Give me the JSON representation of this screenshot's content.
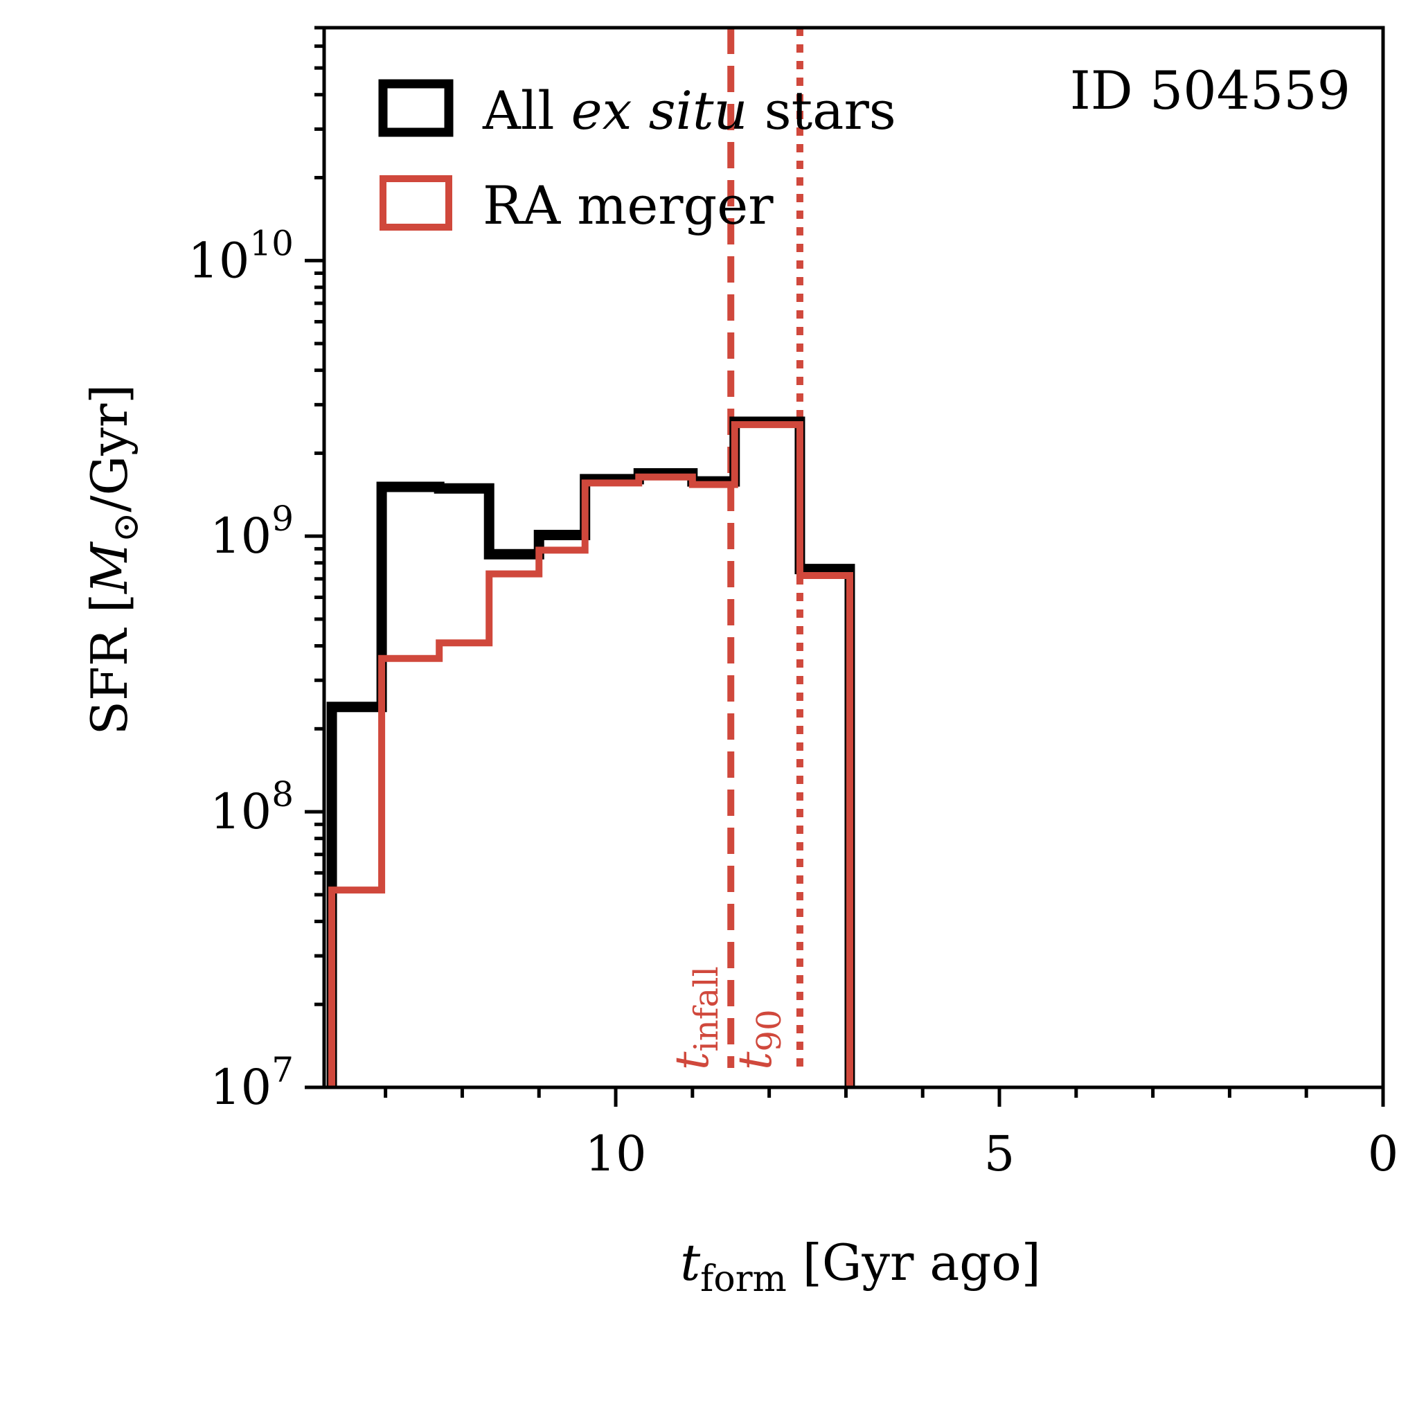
{
  "chart_data": {
    "type": "histogram-step",
    "annotation": "ID 504559",
    "xlabel": {
      "symbol": "t",
      "subscript": "form",
      "rest": " [Gyr ago]"
    },
    "ylabel": {
      "prefix": "SFR [",
      "symbol": "M",
      "subscript": "⊙",
      "suffix": "/Gyr]"
    },
    "xlim": [
      13.8,
      0
    ],
    "ylim": [
      10000000,
      70000000000
    ],
    "yscale": "log",
    "xticks": [
      10,
      5,
      0
    ],
    "xtick_labels": [
      "10",
      "5",
      "0"
    ],
    "yticks": [
      {
        "value": 10000000,
        "mantissa": "10",
        "exponent": "7"
      },
      {
        "value": 100000000,
        "mantissa": "10",
        "exponent": "8"
      },
      {
        "value": 1000000000,
        "mantissa": "10",
        "exponent": "9"
      },
      {
        "value": 10000000000,
        "mantissa": "10",
        "exponent": "10"
      }
    ],
    "bin_edges": [
      13.7,
      13.05,
      12.3,
      11.65,
      11.0,
      10.4,
      9.7,
      9.0,
      8.45,
      7.6,
      6.95
    ],
    "series": [
      {
        "name": "All ex situ stars",
        "label_parts": [
          "All ",
          "ex situ",
          " stars"
        ],
        "color": "#000000",
        "values": [
          240000000,
          1510000000,
          1490000000,
          860000000,
          1010000000,
          1610000000,
          1690000000,
          1580000000,
          2600000000,
          760000000
        ]
      },
      {
        "name": "RA merger",
        "label_parts": [
          "RA merger",
          "",
          ""
        ],
        "color": "#d0483c",
        "values": [
          52000000,
          360000000,
          410000000,
          730000000,
          890000000,
          1560000000,
          1640000000,
          1540000000,
          2540000000,
          720000000
        ]
      }
    ],
    "vlines": [
      {
        "x": 8.5,
        "style": "dashed",
        "color": "#d0483c",
        "label_symbol": "t",
        "label_sub": "infall"
      },
      {
        "x": 7.6,
        "style": "dotted",
        "color": "#d0483c",
        "label_symbol": "t",
        "label_sub": "90"
      }
    ]
  }
}
